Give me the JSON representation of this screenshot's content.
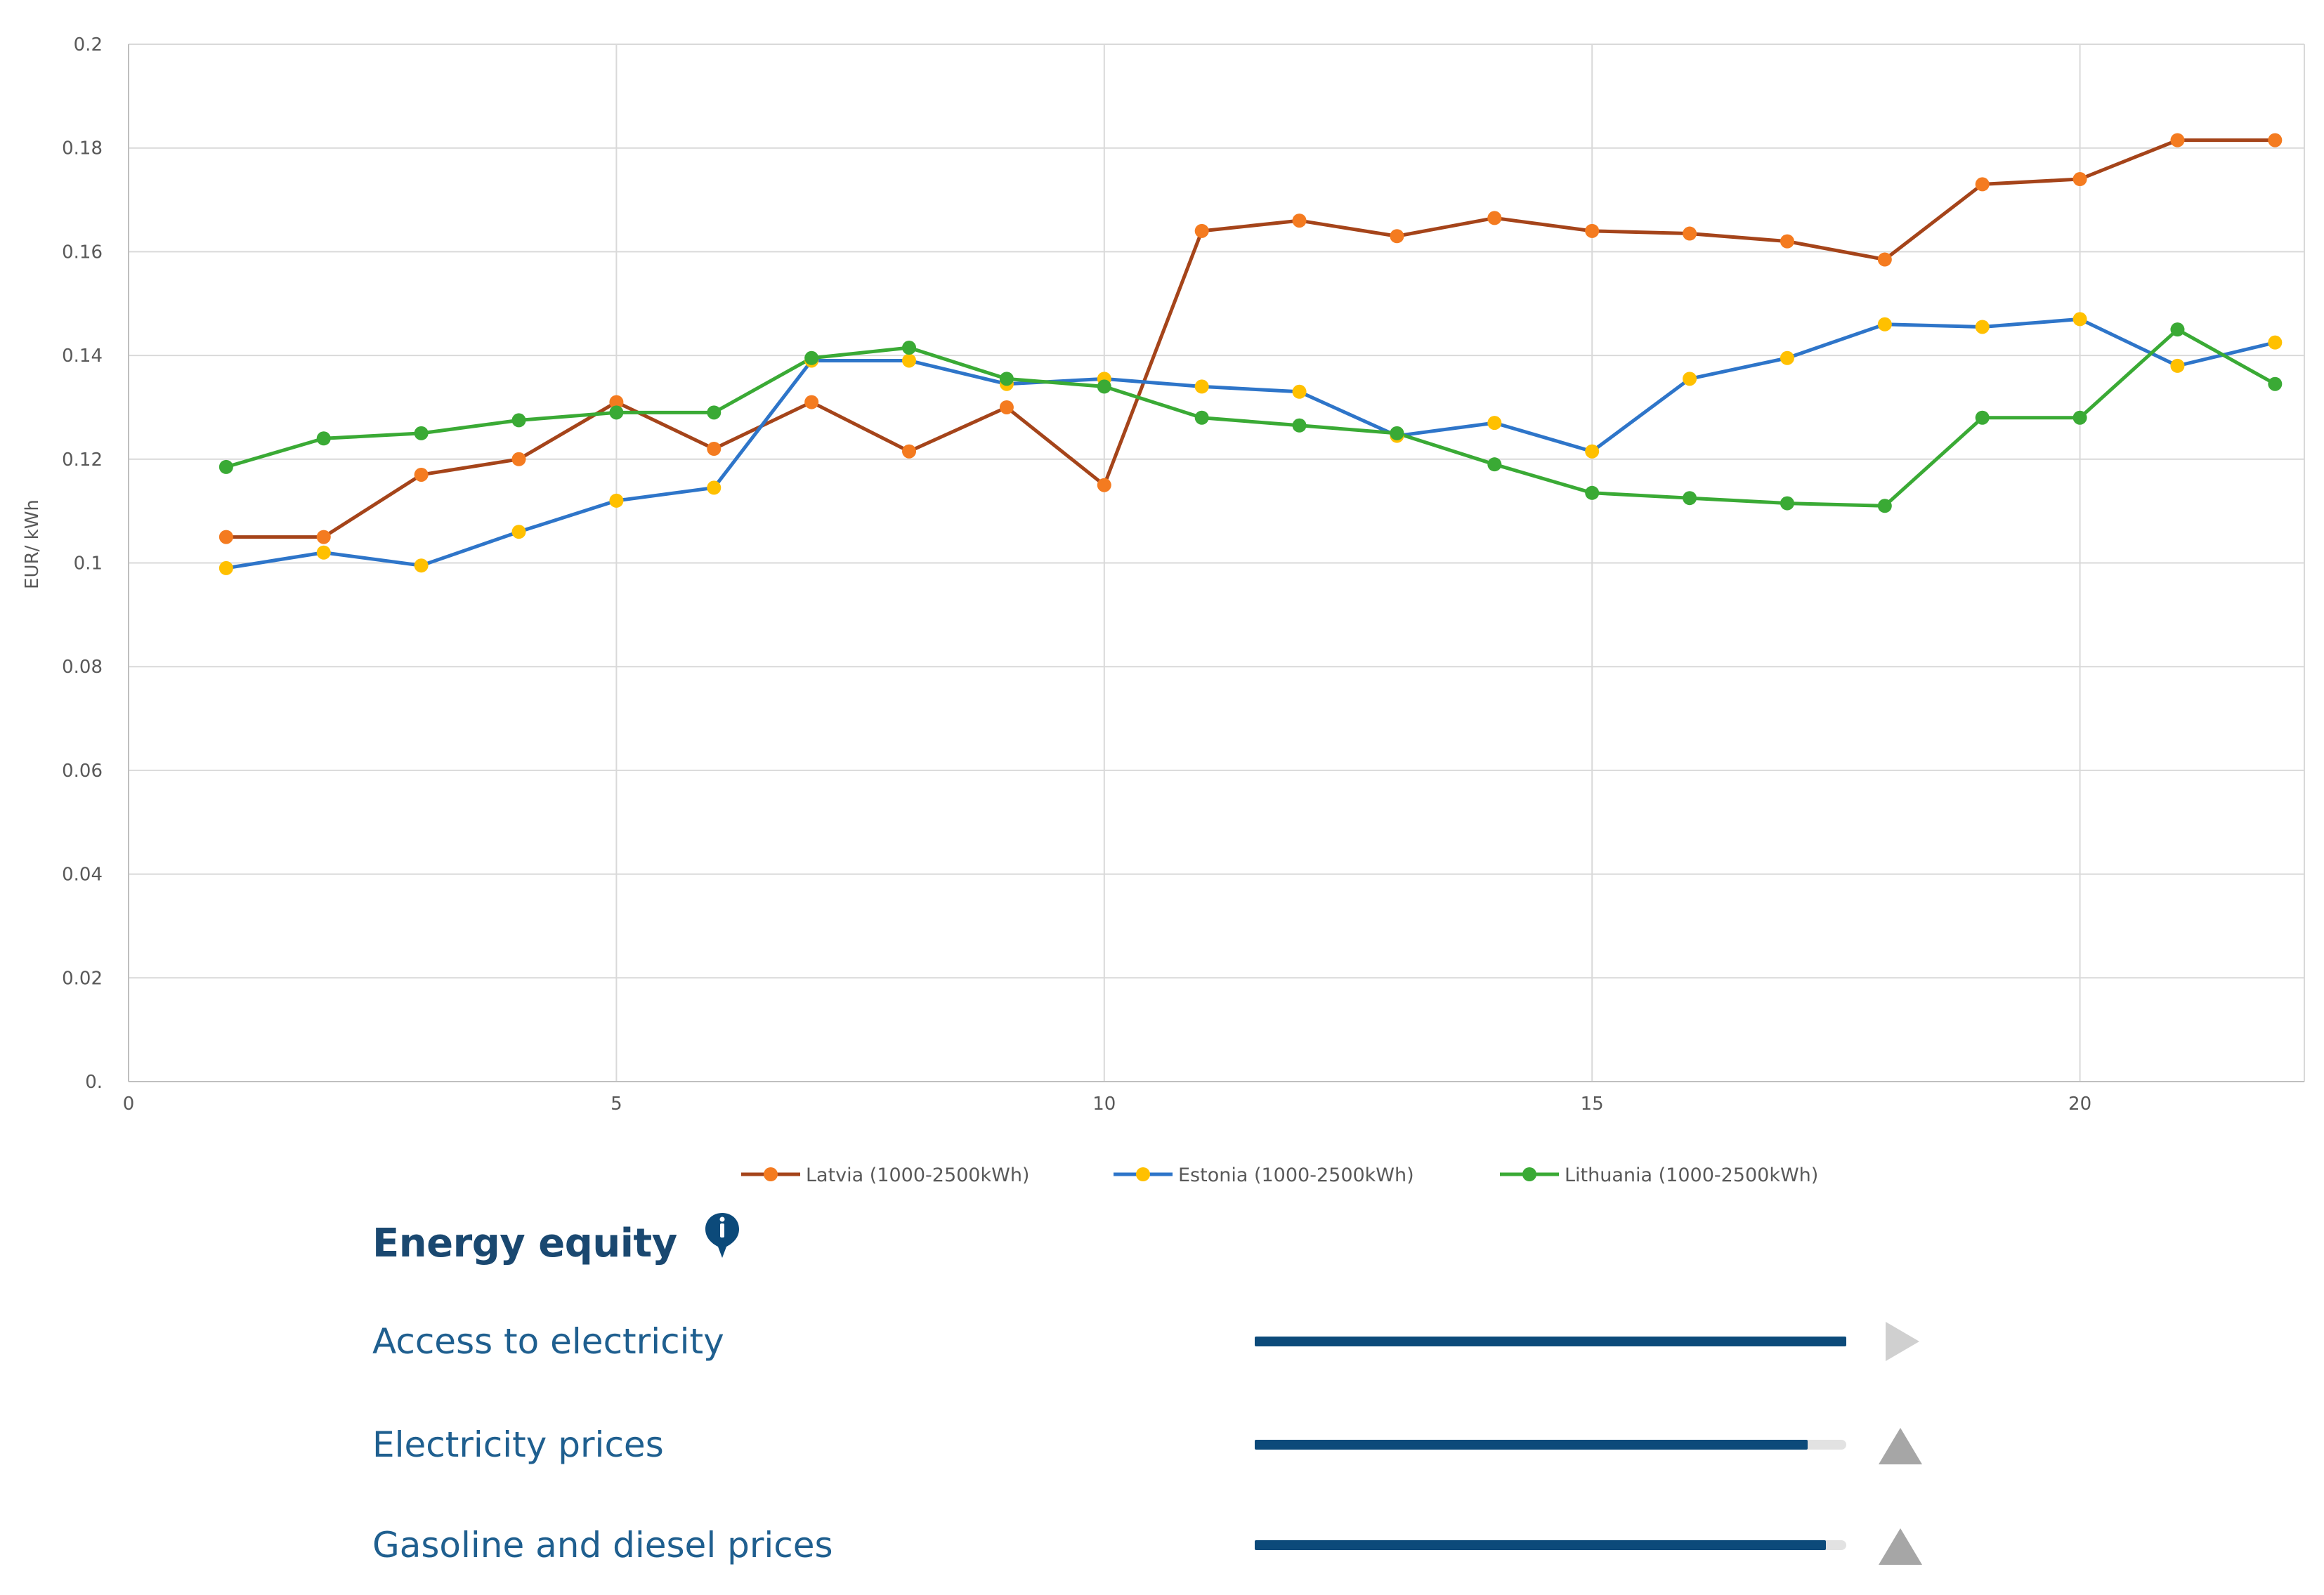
{
  "chart_data": {
    "type": "line",
    "title": "",
    "xlabel": "",
    "ylabel": "EUR/ kWh",
    "xlim": [
      0,
      22.3
    ],
    "ylim": [
      0,
      0.2
    ],
    "xticks": [
      0,
      5,
      10,
      15,
      20
    ],
    "xtick_labels": [
      "0",
      "5",
      "10",
      "15",
      "20"
    ],
    "yticks": [
      0,
      0.02,
      0.04,
      0.06,
      0.08,
      0.1,
      0.12,
      0.14,
      0.16,
      0.18,
      0.2
    ],
    "ytick_labels": [
      "0.",
      "0.02",
      "0.04",
      "0.06",
      "0.08",
      "0.1",
      "0.12",
      "0.14",
      "0.16",
      "0.18",
      "0.2"
    ],
    "grid": true,
    "legend_position": "bottom",
    "x": [
      1,
      2,
      3,
      4,
      5,
      6,
      7,
      8,
      9,
      10,
      11,
      12,
      13,
      14,
      15,
      16,
      17,
      18,
      19,
      20,
      21,
      22
    ],
    "series": [
      {
        "name": "Latvia (1000-2500kWh)",
        "line_color": "#a5441a",
        "marker_color": "#f47b20",
        "values": [
          0.105,
          0.105,
          0.117,
          0.12,
          0.131,
          0.122,
          0.131,
          0.1215,
          0.13,
          0.115,
          0.164,
          0.166,
          0.163,
          0.1665,
          0.164,
          0.1635,
          0.162,
          0.1585,
          0.173,
          0.174,
          0.1815,
          0.1815
        ]
      },
      {
        "name": "Estonia (1000-2500kWh)",
        "line_color": "#2e75c9",
        "marker_color": "#ffc000",
        "values": [
          0.099,
          0.102,
          0.0995,
          0.106,
          0.112,
          0.1145,
          0.139,
          0.139,
          0.1345,
          0.1355,
          0.134,
          0.133,
          0.1245,
          0.127,
          0.1215,
          0.1355,
          0.1395,
          0.146,
          0.1455,
          0.147,
          0.138,
          0.1425
        ]
      },
      {
        "name": "Lithuania (1000-2500kWh)",
        "line_color": "#3aaa35",
        "marker_color": "#3aaa35",
        "values": [
          0.1185,
          0.124,
          0.125,
          0.1275,
          0.129,
          0.129,
          0.1395,
          0.1415,
          0.1355,
          0.134,
          0.128,
          0.1265,
          0.125,
          0.119,
          0.1135,
          0.1125,
          0.1115,
          0.111,
          0.128,
          0.128,
          0.145,
          0.1345
        ]
      }
    ]
  },
  "equity": {
    "title": "Energy equity",
    "info_icon": "info-icon",
    "colors": {
      "bar_fill": "#0c4a7a",
      "bar_track": "#e2e2e2",
      "trend": "#a6a6a6",
      "trend_neutral": "#d0d0d0",
      "title": "#1a4870",
      "label": "#1f5f8f"
    },
    "indicators": [
      {
        "label": "Access to electricity",
        "score_fraction": 1.0,
        "trend_icon": "play-triangle-icon"
      },
      {
        "label": "Electricity prices",
        "score_fraction": 0.935,
        "trend_icon": "up-triangle-icon"
      },
      {
        "label": "Gasoline and diesel prices",
        "score_fraction": 0.965,
        "trend_icon": "up-triangle-icon"
      }
    ]
  }
}
